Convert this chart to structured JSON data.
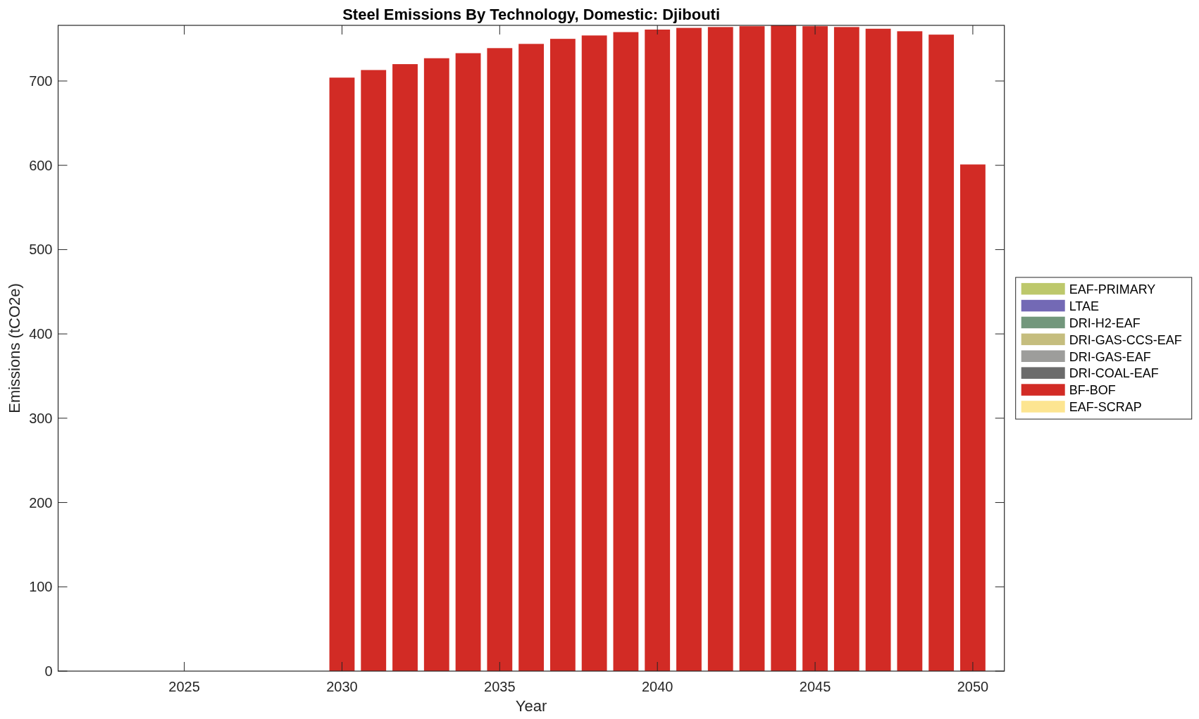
{
  "chart_data": {
    "type": "bar",
    "title": "Steel Emissions By Technology, Domestic: Djibouti",
    "xlabel": "Year",
    "ylabel": "Emissions (tCO2e)",
    "stacked": true,
    "legend": "right",
    "x": [
      2030,
      2031,
      2032,
      2033,
      2034,
      2035,
      2036,
      2037,
      2038,
      2039,
      2040,
      2041,
      2042,
      2043,
      2044,
      2045,
      2046,
      2047,
      2048,
      2049,
      2050
    ],
    "series": [
      {
        "name": "EAF-PRIMARY",
        "color": "#bdc86b",
        "values": [
          0,
          0,
          0,
          0,
          0,
          0,
          0,
          0,
          0,
          0,
          0,
          0,
          0,
          0,
          0,
          0,
          0,
          0,
          0,
          0,
          0
        ]
      },
      {
        "name": "LTAE",
        "color": "#7369b5",
        "values": [
          0,
          0,
          0,
          0,
          0,
          0,
          0,
          0,
          0,
          0,
          0,
          0,
          0,
          0,
          0,
          0,
          0,
          0,
          0,
          0,
          0
        ]
      },
      {
        "name": "DRI-H2-EAF",
        "color": "#72977c",
        "values": [
          0,
          0,
          0,
          0,
          0,
          0,
          0,
          0,
          0,
          0,
          0,
          0,
          0,
          0,
          0,
          0,
          0,
          0,
          0,
          0,
          0
        ]
      },
      {
        "name": "DRI-GAS-CCS-EAF",
        "color": "#c5bd7e",
        "values": [
          0,
          0,
          0,
          0,
          0,
          0,
          0,
          0,
          0,
          0,
          0,
          0,
          0,
          0,
          0,
          0,
          0,
          0,
          0,
          0,
          0
        ]
      },
      {
        "name": "DRI-GAS-EAF",
        "color": "#9d9d9b",
        "values": [
          0,
          0,
          0,
          0,
          0,
          0,
          0,
          0,
          0,
          0,
          0,
          0,
          0,
          0,
          0,
          0,
          0,
          0,
          0,
          0,
          0
        ]
      },
      {
        "name": "DRI-COAL-EAF",
        "color": "#6b6b6b",
        "values": [
          0,
          0,
          0,
          0,
          0,
          0,
          0,
          0,
          0,
          0,
          0,
          0,
          0,
          0,
          0,
          0,
          0,
          0,
          0,
          0,
          0
        ]
      },
      {
        "name": "BF-BOF",
        "color": "#d22b25",
        "values": [
          704,
          713,
          720,
          727,
          733,
          739,
          744,
          750,
          754,
          758,
          761,
          763,
          764,
          765,
          766,
          765,
          764,
          762,
          759,
          755,
          601
        ]
      },
      {
        "name": "EAF-SCRAP",
        "color": "#fde591",
        "values": [
          0,
          0,
          0,
          0,
          0,
          0,
          0,
          0,
          0,
          0,
          0,
          0,
          0,
          0,
          0,
          0,
          0,
          0,
          0,
          0,
          0
        ]
      }
    ],
    "xlim": [
      2021,
      2051
    ],
    "xticks": [
      2025,
      2030,
      2035,
      2040,
      2045,
      2050
    ],
    "ylim": [
      0,
      766
    ],
    "yticks": [
      0,
      100,
      200,
      300,
      400,
      500,
      600,
      700
    ]
  }
}
